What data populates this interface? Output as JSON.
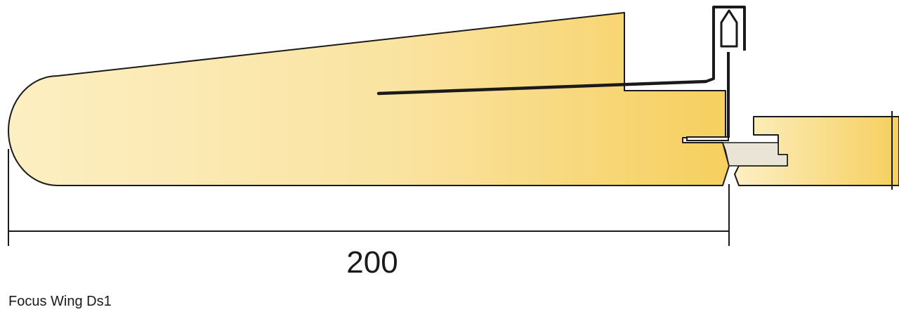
{
  "caption": "Focus Wing Ds1",
  "dimension": {
    "value": "200"
  },
  "colors": {
    "panel_light": "#FCEFC2",
    "panel_dark": "#F6CF5E",
    "outline": "#1a1a1a",
    "background": "#ffffff"
  }
}
